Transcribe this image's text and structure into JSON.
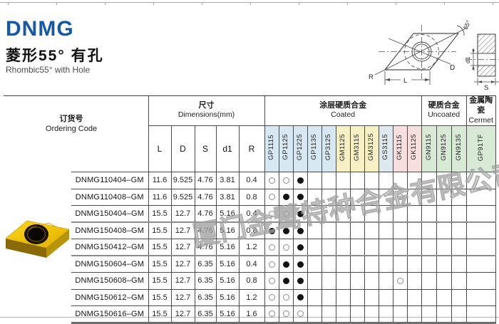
{
  "page": {
    "brand": "DNMG",
    "subtitle_cn": "菱形55°  有孔",
    "subtitle_en": "Rhombic55° with Hole"
  },
  "watermark": "厦门金鹭特种合金有限公司",
  "diagram": {
    "labels": {
      "angle": "55°",
      "D": "D",
      "R": "R",
      "L": "L",
      "d1": "d1",
      "S": "S"
    }
  },
  "table": {
    "ordering_header": {
      "cn": "订货号",
      "en": "Ordering Code"
    },
    "dims_header": {
      "cn": "尺寸",
      "en": "Dimensions(mm)"
    },
    "dim_cols": [
      "L",
      "D",
      "S",
      "d1",
      "R"
    ],
    "groups": [
      {
        "id": "coated",
        "cn": "涂层硬质合金",
        "en": "Coated",
        "span": 11
      },
      {
        "id": "uncoated",
        "cn": "硬质合金",
        "en": "Uncoated",
        "span": 3
      },
      {
        "id": "cermet",
        "cn": "金属陶瓷",
        "en": "Cermet",
        "span": 1
      }
    ],
    "grades": [
      {
        "name": "GP1115",
        "color": "#d7e8f2"
      },
      {
        "name": "GP1125",
        "color": "#d7e8f2"
      },
      {
        "name": "GP1225",
        "color": "#d7e8f2"
      },
      {
        "name": "GP1135",
        "color": "#d7e8f2"
      },
      {
        "name": "GP3125",
        "color": "#d7e8f2"
      },
      {
        "name": "GM1125",
        "color": "#f6f0c4"
      },
      {
        "name": "GM3115",
        "color": "#f6f0c4"
      },
      {
        "name": "GM3125",
        "color": "#f6f0c4"
      },
      {
        "name": "GS3115",
        "color": "#dee9ef"
      },
      {
        "name": "GK1115",
        "color": "#f8dfdf"
      },
      {
        "name": "GK1125",
        "color": "#f8dfdf"
      },
      {
        "name": "GN9115",
        "color": "#d8ead6"
      },
      {
        "name": "GN9125",
        "color": "#d8ead6"
      },
      {
        "name": "GN9135",
        "color": "#d8ead6"
      },
      {
        "name": "GP91TF",
        "color": "#d8ead6"
      }
    ],
    "rows": [
      {
        "code": "DNMG110404–GM",
        "dims": [
          "11.6",
          "9.525",
          "4.76",
          "3.81",
          "0.4"
        ],
        "marks": {
          "GP1115": "open",
          "GP1125": "open",
          "GP1225": "filled"
        }
      },
      {
        "code": "DNMG110408–GM",
        "dims": [
          "11.6",
          "9.525",
          "4.76",
          "3.81",
          "0.8"
        ],
        "marks": {
          "GP1115": "open",
          "GP1125": "filled",
          "GP1225": "filled",
          "GK1115": "open"
        }
      },
      {
        "code": "DNMG150404–GM",
        "dims": [
          "15.5",
          "12.7",
          "4.76",
          "5.16",
          "0.4"
        ],
        "marks": {
          "GP1115": "open",
          "GP1125": "open",
          "GP1225": "filled"
        },
        "group_end": true
      },
      {
        "code": "DNMG150408–GM",
        "dims": [
          "15.5",
          "12.7",
          "4.76",
          "5.16",
          "0.8"
        ],
        "marks": {
          "GP1115": "filled",
          "GP1125": "filled",
          "GP1225": "filled"
        }
      },
      {
        "code": "DNMG150412–GM",
        "dims": [
          "15.5",
          "12.7",
          "4.76",
          "5.16",
          "1.2"
        ],
        "marks": {
          "GP1115": "open",
          "GP1125": "open",
          "GP1225": "filled"
        },
        "group_end": true
      },
      {
        "code": "DNMG150604–GM",
        "dims": [
          "15.5",
          "12.7",
          "6.35",
          "5.16",
          "0.4"
        ],
        "marks": {
          "GP1115": "open",
          "GP1125": "filled",
          "GP1225": "filled"
        }
      },
      {
        "code": "DNMG150608–GM",
        "dims": [
          "15.5",
          "12.7",
          "6.35",
          "5.16",
          "0.8"
        ],
        "marks": {
          "GP1115": "open",
          "GP1125": "filled",
          "GP1225": "filled",
          "GK1115": "open"
        }
      },
      {
        "code": "DNMG150612–GM",
        "dims": [
          "15.5",
          "12.7",
          "6.35",
          "5.16",
          "1.2"
        ],
        "marks": {
          "GP1115": "open",
          "GP1125": "open",
          "GP1225": "filled"
        }
      },
      {
        "code": "DNMG150616–GM",
        "dims": [
          "15.5",
          "12.7",
          "6.35",
          "5.16",
          "1.6"
        ],
        "marks": {
          "GP1115": "open",
          "GP1125": "open",
          "GP1225": "open"
        }
      }
    ]
  }
}
